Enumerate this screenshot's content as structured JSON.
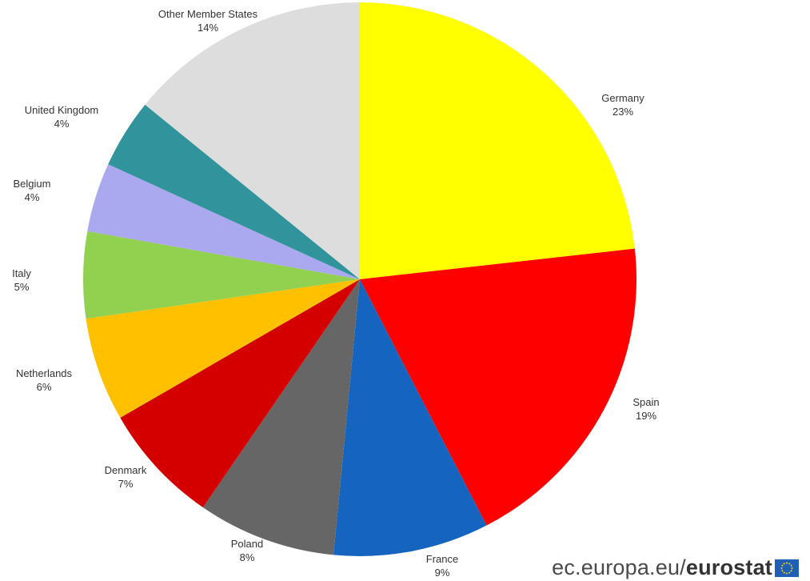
{
  "chart_data": {
    "type": "pie",
    "slices": [
      {
        "name": "Germany",
        "pct_label": "23%",
        "value": 23,
        "color": "#ffff00"
      },
      {
        "name": "Spain",
        "pct_label": "19%",
        "value": 19,
        "color": "#ff0000"
      },
      {
        "name": "France",
        "pct_label": "9%",
        "value": 9,
        "color": "#1565c0"
      },
      {
        "name": "Poland",
        "pct_label": "8%",
        "value": 8,
        "color": "#666666"
      },
      {
        "name": "Denmark",
        "pct_label": "7%",
        "value": 7,
        "color": "#d40000"
      },
      {
        "name": "Netherlands",
        "pct_label": "6%",
        "value": 6,
        "color": "#ffc000"
      },
      {
        "name": "Italy",
        "pct_label": "5%",
        "value": 5,
        "color": "#92d050"
      },
      {
        "name": "Belgium",
        "pct_label": "4%",
        "value": 4,
        "color": "#aaa8ee"
      },
      {
        "name": "United Kingdom",
        "pct_label": "4%",
        "value": 4,
        "color": "#31939b"
      },
      {
        "name": "Other Member States",
        "pct_label": "14%",
        "value": 14,
        "color": "#dddddd"
      }
    ]
  },
  "footer": {
    "domain_text": "ec.europa.eu/",
    "brand_text": "eurostat",
    "flag_icon": "eu-flag-icon"
  }
}
